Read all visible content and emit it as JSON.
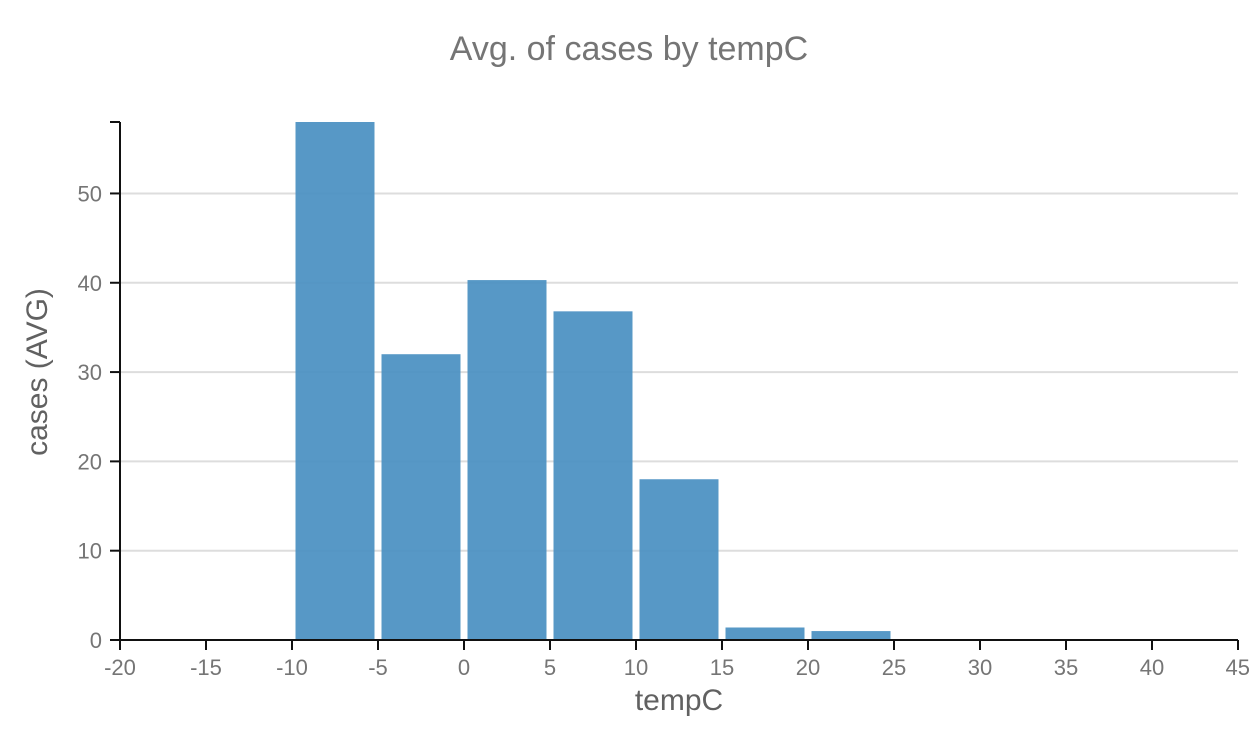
{
  "chart_data": {
    "type": "bar",
    "title": "Avg. of cases by tempC",
    "xlabel": "tempC",
    "ylabel": "cases (AVG)",
    "xlim": [
      -20,
      45
    ],
    "ylim": [
      0,
      58
    ],
    "x_ticks": [
      -20,
      -15,
      -10,
      -5,
      0,
      5,
      10,
      15,
      20,
      25,
      30,
      35,
      40,
      45
    ],
    "y_ticks": [
      0,
      10,
      20,
      30,
      40,
      50
    ],
    "grid": true,
    "legend": "none",
    "bar_color": "#4a90c2",
    "bins": [
      {
        "start": -20,
        "end": -15,
        "value": 0.1
      },
      {
        "start": -15,
        "end": -10,
        "value": 0.1
      },
      {
        "start": -10,
        "end": -5,
        "value": 58
      },
      {
        "start": -5,
        "end": 0,
        "value": 32
      },
      {
        "start": 0,
        "end": 5,
        "value": 40.3
      },
      {
        "start": 5,
        "end": 10,
        "value": 36.8
      },
      {
        "start": 10,
        "end": 15,
        "value": 18
      },
      {
        "start": 15,
        "end": 20,
        "value": 1.4
      },
      {
        "start": 20,
        "end": 25,
        "value": 1.0
      },
      {
        "start": 25,
        "end": 30,
        "value": 0.1
      }
    ]
  }
}
